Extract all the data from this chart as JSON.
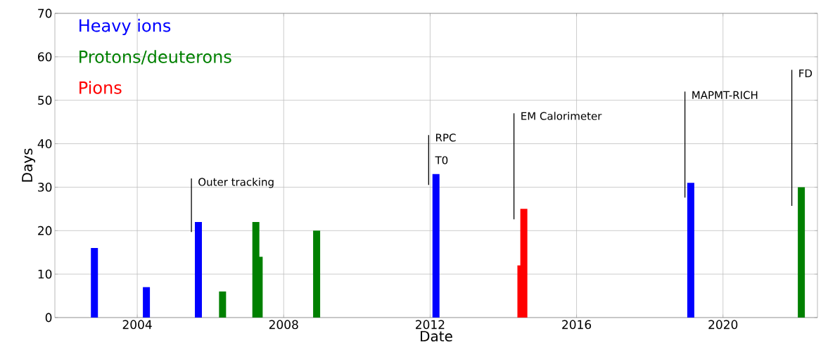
{
  "chart_data": {
    "type": "bar",
    "xlabel": "Date",
    "ylabel": "Days",
    "xlim": [
      2001.75,
      2022.58
    ],
    "ylim": [
      0,
      70
    ],
    "xticks": [
      2004,
      2008,
      2012,
      2016,
      2020
    ],
    "yticks": [
      0,
      10,
      20,
      30,
      40,
      50,
      60,
      70
    ],
    "grid": true,
    "legend": "top left",
    "series": [
      {
        "name": "Heavy ions",
        "color": "#0000ff",
        "x": [
          2002.83,
          2004.25,
          2005.67,
          2012.16,
          2019.12
        ],
        "values": [
          16,
          7,
          22,
          33,
          31
        ]
      },
      {
        "name": "Protons/deuterons",
        "color": "#008000",
        "x": [
          2006.33,
          2007.24,
          2008.9,
          2022.14
        ],
        "values": [
          6,
          22,
          20,
          30
        ]
      },
      {
        "name": "Pions",
        "color": "#ff0000",
        "x": [
          2014.56
        ],
        "values": [
          25
        ]
      },
      {
        "color": "#008000",
        "x": [
          2007.33
        ],
        "values": [
          14
        ]
      },
      {
        "color": "#ff0000",
        "x": [
          2014.48
        ],
        "values": [
          12
        ]
      },
      {
        "type": "line",
        "color": "#000000",
        "x": [
          2005.48,
          2005.48
        ],
        "values": [
          19.7,
          32
        ]
      },
      {
        "type": "line",
        "color": "#000000",
        "x": [
          2011.96,
          2011.96
        ],
        "values": [
          30.5,
          42
        ]
      },
      {
        "type": "line",
        "color": "#000000",
        "x": [
          2014.29,
          2014.29
        ],
        "values": [
          22.6,
          47
        ]
      },
      {
        "type": "line",
        "color": "#000000",
        "x": [
          2018.96,
          2018.96
        ],
        "values": [
          27.6,
          52
        ]
      },
      {
        "type": "line",
        "color": "#000000",
        "x": [
          2021.88,
          2021.88
        ],
        "values": [
          25.7,
          57
        ]
      }
    ],
    "annotations": [
      {
        "text": "Outer tracking",
        "x": 2005.48,
        "y": 31
      },
      {
        "text": "RPC",
        "x": 2011.96,
        "y": 41.4
      },
      {
        "text": "T0",
        "x": 2011.96,
        "y": 36.2
      },
      {
        "text": "EM Calorimeter",
        "x": 2014.29,
        "y": 46.4
      },
      {
        "text": "MAPMT-RICH",
        "x": 2018.96,
        "y": 51.2
      },
      {
        "text": "FD",
        "x": 2021.88,
        "y": 56.2
      }
    ]
  }
}
